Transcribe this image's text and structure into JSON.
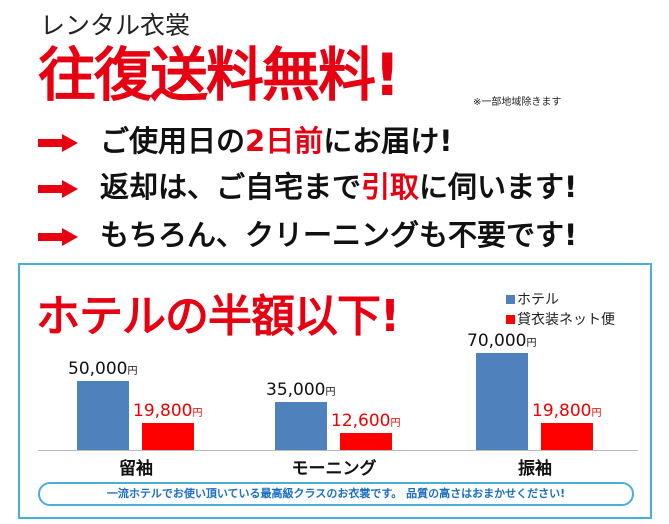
{
  "header": {
    "subtitle": "レンタル衣裳",
    "headline": "往復送料無料!",
    "note": "※一部地域除きます"
  },
  "features": [
    {
      "parts": [
        {
          "t": "ご使用日の",
          "hl": false
        },
        {
          "t": "2日前",
          "hl": true
        },
        {
          "t": "にお届け!",
          "hl": false
        }
      ]
    },
    {
      "parts": [
        {
          "t": "返却は、ご自宅まで",
          "hl": false
        },
        {
          "t": "引取",
          "hl": true
        },
        {
          "t": "に伺います!",
          "hl": false
        }
      ]
    },
    {
      "parts": [
        {
          "t": "もちろん、クリーニングも不要です!",
          "hl": false
        }
      ]
    }
  ],
  "chart_data": {
    "type": "bar",
    "title": "ホテルの半額以下!",
    "categories": [
      "留袖",
      "モーニング",
      "振袖"
    ],
    "series": [
      {
        "name": "ホテル",
        "color": "#4f81bd",
        "values": [
          50000,
          35000,
          70000
        ],
        "labels": [
          "50,000",
          "35,000",
          "70,000"
        ]
      },
      {
        "name": "貸衣装ネット便",
        "color": "#ff0000",
        "values": [
          19800,
          12600,
          19800
        ],
        "labels": [
          "19,800",
          "12,600",
          "19,800"
        ]
      }
    ],
    "unit": "円",
    "legend": "top-right",
    "grid": false
  },
  "footer": "一流ホテルでお使い頂いている最高級クラスのお衣裳です。 品質の高さはおまかせください!",
  "colors": {
    "accent": "#e60012",
    "border": "#4aaedb",
    "footer_text": "#1a6fc4"
  }
}
